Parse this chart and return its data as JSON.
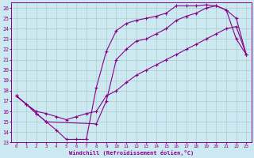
{
  "xlabel": "Windchill (Refroidissement éolien,°C)",
  "bg_color": "#cce8f0",
  "grid_color": "#aacccc",
  "line_color": "#880088",
  "xlim": [
    -0.5,
    23.5
  ],
  "ylim": [
    13,
    26.5
  ],
  "xticks": [
    0,
    1,
    2,
    3,
    4,
    5,
    6,
    7,
    8,
    9,
    10,
    11,
    12,
    13,
    14,
    15,
    16,
    17,
    18,
    19,
    20,
    21,
    22,
    23
  ],
  "yticks": [
    13,
    14,
    15,
    16,
    17,
    18,
    19,
    20,
    21,
    22,
    23,
    24,
    25,
    26
  ],
  "curve1_x": [
    0,
    1,
    2,
    3,
    4,
    5,
    6,
    7,
    8,
    9,
    10,
    11,
    12,
    13,
    14,
    15,
    16,
    17,
    18,
    19,
    20,
    21,
    22,
    23
  ],
  "curve1_y": [
    17.5,
    16.7,
    15.8,
    15.0,
    14.2,
    13.3,
    13.3,
    13.3,
    18.3,
    21.8,
    23.8,
    24.5,
    24.8,
    25.0,
    25.2,
    25.5,
    26.2,
    26.2,
    26.2,
    26.3,
    26.2,
    25.8,
    25.0,
    21.5
  ],
  "curve2_x": [
    0,
    1,
    2,
    3,
    8,
    9,
    10,
    11,
    12,
    13,
    14,
    15,
    16,
    17,
    18,
    19,
    20,
    21,
    22,
    23
  ],
  "curve2_y": [
    17.5,
    16.7,
    15.8,
    15.0,
    14.8,
    17.0,
    21.0,
    22.0,
    22.8,
    23.0,
    23.5,
    24.0,
    24.8,
    25.2,
    25.5,
    26.0,
    26.2,
    25.8,
    23.0,
    21.5
  ],
  "curve3_x": [
    0,
    1,
    2,
    3,
    4,
    5,
    6,
    7,
    8,
    9,
    10,
    11,
    12,
    13,
    14,
    15,
    16,
    17,
    18,
    19,
    20,
    21,
    22,
    23
  ],
  "curve3_y": [
    17.5,
    16.7,
    16.0,
    15.8,
    15.5,
    15.2,
    15.5,
    15.8,
    16.0,
    17.5,
    18.0,
    18.8,
    19.5,
    20.0,
    20.5,
    21.0,
    21.5,
    22.0,
    22.5,
    23.0,
    23.5,
    24.0,
    24.2,
    21.5
  ]
}
